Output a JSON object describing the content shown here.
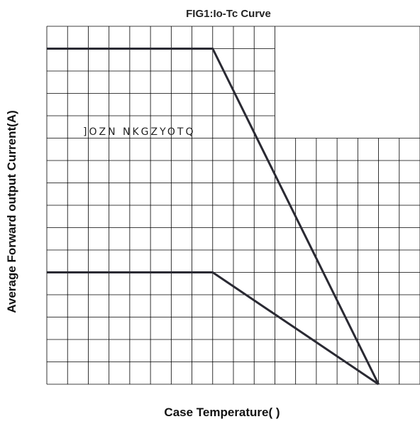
{
  "chart_data": {
    "type": "line",
    "title": "FIG1:Io-Tc Curve",
    "xlabel": "Case Temperature(   )",
    "ylabel": "Average Forward output Current(A)",
    "annotation": "]OZN NKGZYOTQ",
    "grid": true,
    "legend": "none",
    "xlim": [
      0,
      18
    ],
    "ylim": [
      0,
      16
    ],
    "blank_region": {
      "x": [
        11,
        18
      ],
      "y": [
        11,
        16
      ]
    },
    "series": [
      {
        "x": [
          0,
          8,
          16
        ],
        "y": [
          15,
          15,
          0
        ]
      },
      {
        "x": [
          0,
          8,
          16
        ],
        "y": [
          5,
          5,
          0
        ]
      }
    ]
  }
}
